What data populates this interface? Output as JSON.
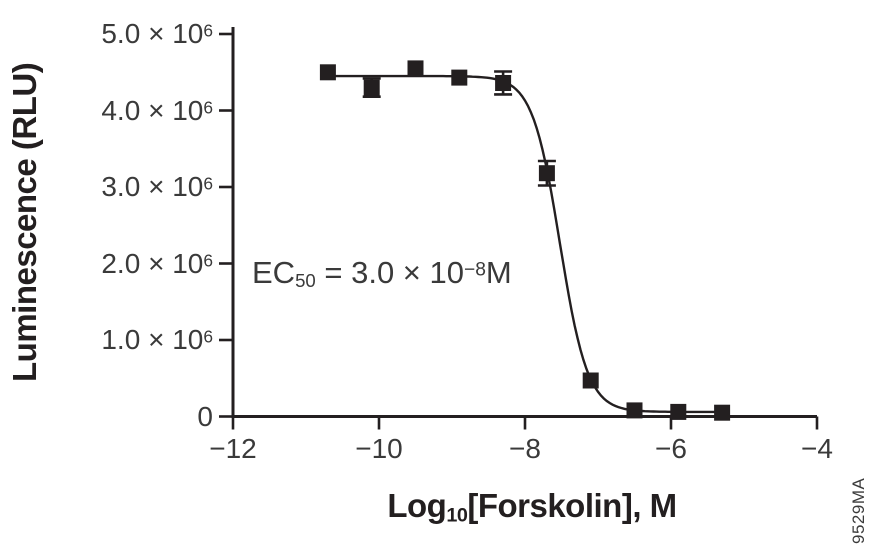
{
  "figure_code": "9529MA",
  "colors": {
    "ink": "#231f20",
    "label": "#3a3a3a",
    "background": "#ffffff"
  },
  "chart_data": {
    "type": "scatter",
    "title": "",
    "ylabel": "Luminescence (RLU)",
    "xlabel": {
      "prefix": "Log",
      "sub": "10",
      "suffix": "[Forskolin], M"
    },
    "x_axis": {
      "min": -12,
      "max": -4,
      "ticks": [
        -12,
        -10,
        -8,
        -6,
        -4
      ],
      "tick_labels": [
        "−12",
        "−10",
        "−8",
        "−6",
        "−4"
      ]
    },
    "y_axis": {
      "min": 0,
      "max": 5000000,
      "ticks": [
        5000000,
        4000000,
        3000000,
        2000000,
        1000000,
        0
      ],
      "tick_labels": [
        {
          "base": "5.0 × 10",
          "sup": "6"
        },
        {
          "base": "4.0 × 10",
          "sup": "6"
        },
        {
          "base": "3.0 × 10",
          "sup": "6"
        },
        {
          "base": "2.0 × 10",
          "sup": "6"
        },
        {
          "base": "1.0 × 10",
          "sup": "6"
        },
        {
          "base": "0",
          "sup": ""
        }
      ]
    },
    "grid": false,
    "legend": false,
    "series": [
      {
        "marker": "filled-square",
        "points": [
          {
            "x": -10.7,
            "y": 4500000,
            "err": 0
          },
          {
            "x": -10.1,
            "y": 4300000,
            "err": 120000
          },
          {
            "x": -9.5,
            "y": 4550000,
            "err": 0
          },
          {
            "x": -8.9,
            "y": 4430000,
            "err": 0
          },
          {
            "x": -8.3,
            "y": 4360000,
            "err": 150000
          },
          {
            "x": -7.7,
            "y": 3180000,
            "err": 160000
          },
          {
            "x": -7.1,
            "y": 470000,
            "err": 0
          },
          {
            "x": -6.5,
            "y": 80000,
            "err": 0
          },
          {
            "x": -5.9,
            "y": 60000,
            "err": 0
          },
          {
            "x": -5.3,
            "y": 50000,
            "err": 0
          }
        ]
      }
    ],
    "curve_fit": {
      "model": "4PL-sigmoid",
      "top": 4450000,
      "bottom": 60000,
      "log_ec50": -7.52,
      "hill": 2.3
    },
    "annotation": {
      "prefix": "EC",
      "sub": "50",
      "mid": " = 3.0 × 10",
      "sup": "−8",
      "suffix": "M"
    }
  }
}
